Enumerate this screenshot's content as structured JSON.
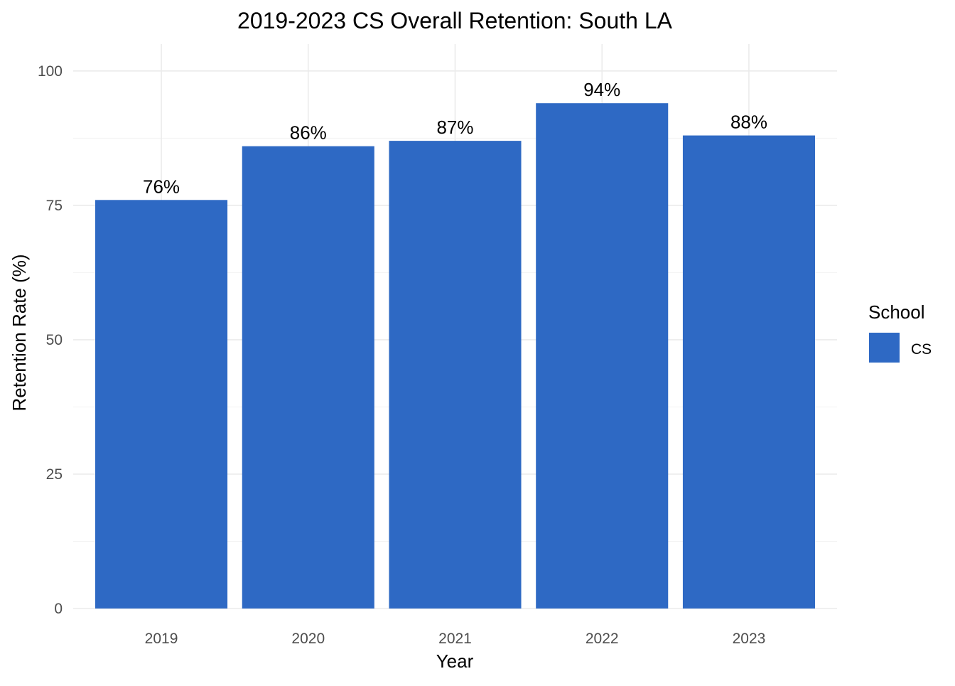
{
  "chart_data": {
    "type": "bar",
    "title": "2019-2023 CS Overall Retention: South LA",
    "xlabel": "Year",
    "ylabel": "Retention Rate (%)",
    "categories": [
      "2019",
      "2020",
      "2021",
      "2022",
      "2023"
    ],
    "series": [
      {
        "name": "CS",
        "values": [
          76,
          86,
          87,
          94,
          88
        ],
        "labels": [
          "76%",
          "86%",
          "87%",
          "94%",
          "88%"
        ],
        "color": "#2e69c4"
      }
    ],
    "ylim": [
      0,
      105
    ],
    "yticks": [
      "0",
      "25",
      "50",
      "75",
      "100"
    ],
    "grid": true,
    "legend": {
      "title": "School",
      "placement": "right"
    }
  }
}
